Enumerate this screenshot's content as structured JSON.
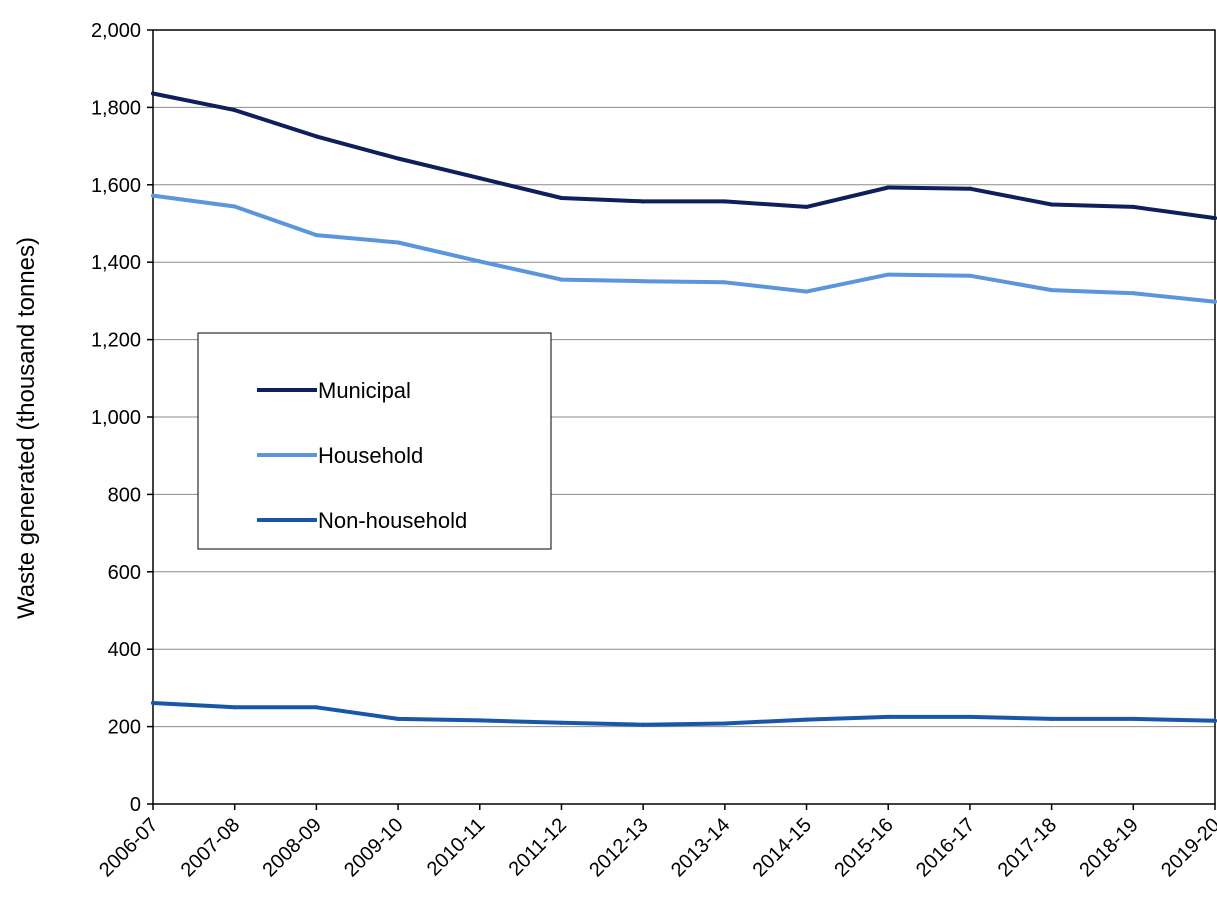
{
  "chart_data": {
    "type": "line",
    "title": "",
    "xlabel": "",
    "ylabel": "Waste generated (thousand tonnes)",
    "ylim": [
      0,
      2000
    ],
    "y_ticks": [
      0,
      200,
      400,
      600,
      800,
      1000,
      1200,
      1400,
      1600,
      1800,
      2000
    ],
    "y_tick_labels": [
      "0",
      "200",
      "400",
      "600",
      "800",
      "1,000",
      "1,200",
      "1,400",
      "1,600",
      "1,800",
      "2,000"
    ],
    "grid": "horizontal",
    "legend_position": "middle-left",
    "categories": [
      "2006-07",
      "2007-08",
      "2008-09",
      "2009-10",
      "2010-11",
      "2011-12",
      "2012-13",
      "2013-14",
      "2014-15",
      "2015-16",
      "2016-17",
      "2017-18",
      "2018-19",
      "2019-20"
    ],
    "series": [
      {
        "name": "Municipal",
        "color": "#0f1f5c",
        "values": [
          1836,
          1793,
          1725,
          1668,
          1617,
          1566,
          1557,
          1557,
          1543,
          1593,
          1590,
          1549,
          1543,
          1514
        ]
      },
      {
        "name": "Household",
        "color": "#5b95dc",
        "values": [
          1572,
          1544,
          1470,
          1451,
          1402,
          1355,
          1351,
          1348,
          1324,
          1368,
          1365,
          1328,
          1320,
          1298
        ]
      },
      {
        "name": "Non-household",
        "color": "#1a56a8",
        "values": [
          261,
          250,
          250,
          220,
          216,
          210,
          205,
          208,
          218,
          225,
          225,
          220,
          220,
          215
        ]
      }
    ]
  }
}
